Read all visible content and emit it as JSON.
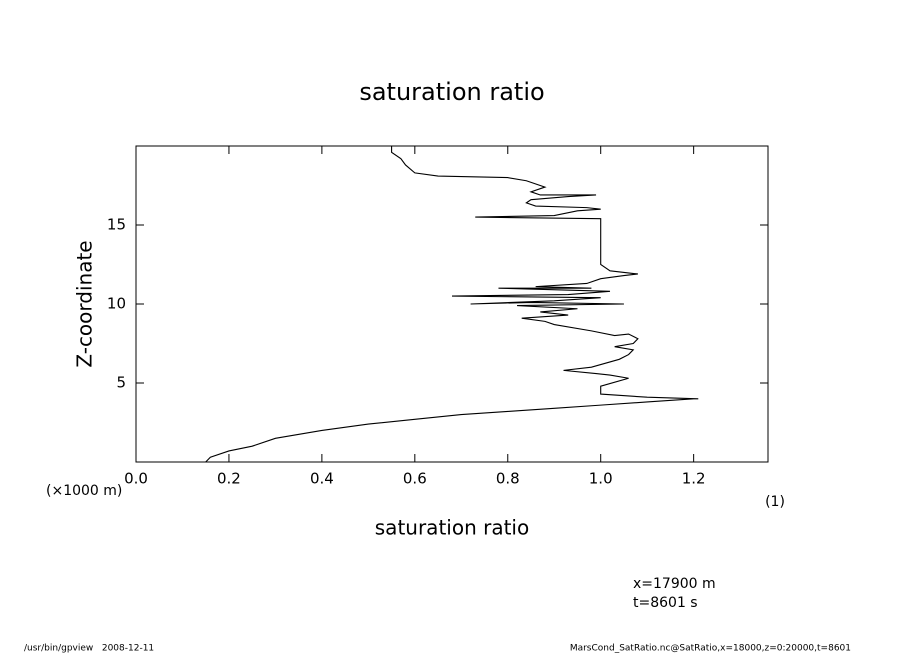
{
  "chart_data": {
    "type": "line",
    "title": "saturation ratio",
    "x_label": "saturation ratio",
    "y_label": "Z-coordinate",
    "y_unit": "(×1000 m)",
    "x_unit": "(1)",
    "annotations": [
      "x=17900 m",
      "t=8601 s"
    ],
    "footer_left": "/usr/bin/gpview   2008-12-11",
    "footer_right": "MarsCond_SatRatio.nc@SatRatio,x=18000,z=0:20000,t=8601",
    "xlim": [
      0,
      1.36
    ],
    "ylim": [
      0,
      20
    ],
    "xticks": [
      {
        "value": 0,
        "label": "0.0"
      },
      0.2,
      0.4,
      0.6,
      0.8,
      {
        "value": 1,
        "label": "1.0"
      },
      1.2
    ],
    "yticks": [
      5,
      10,
      15
    ],
    "series": [
      {
        "color": "#000000",
        "x": [
          0.15,
          0.16,
          0.2,
          0.25,
          0.3,
          0.4,
          0.5,
          0.6,
          0.7,
          0.8,
          0.9,
          1.0,
          1.1,
          1.2,
          1.21,
          1.1,
          1.0,
          1.0,
          1.06,
          1.02,
          0.99,
          0.92,
          0.98,
          1.04,
          1.06,
          1.07,
          1.03,
          1.07,
          1.08,
          1.06,
          1.03,
          0.98,
          0.9,
          0.88,
          0.83,
          0.93,
          0.87,
          0.95,
          0.82,
          1.05,
          0.85,
          0.72,
          0.9,
          1.0,
          0.68,
          0.93,
          1.02,
          0.78,
          0.98,
          0.86,
          0.97,
          1.0,
          1.05,
          1.08,
          1.02,
          1.0,
          1.0,
          0.73,
          0.9,
          0.95,
          1.0,
          0.97,
          0.86,
          0.84,
          0.85,
          0.93,
          0.99,
          0.87,
          0.85,
          0.88,
          0.84,
          0.8,
          0.65,
          0.6,
          0.58,
          0.57,
          0.55,
          0.55
        ],
        "values": [
          0,
          0.3,
          0.7,
          1.0,
          1.5,
          2.0,
          2.4,
          2.7,
          3.0,
          3.2,
          3.4,
          3.6,
          3.8,
          4.0,
          4.0,
          4.1,
          4.3,
          4.8,
          5.3,
          5.5,
          5.6,
          5.8,
          6.0,
          6.5,
          6.8,
          7.1,
          7.3,
          7.5,
          7.8,
          8.1,
          8.0,
          8.3,
          8.7,
          8.9,
          9.1,
          9.3,
          9.5,
          9.7,
          9.9,
          10.0,
          10.1,
          10.0,
          10.2,
          10.4,
          10.5,
          10.6,
          10.8,
          11.0,
          11.0,
          11.1,
          11.3,
          11.6,
          11.8,
          11.9,
          12.1,
          12.5,
          15.4,
          15.5,
          15.6,
          15.9,
          16.0,
          16.1,
          16.2,
          16.4,
          16.6,
          16.8,
          16.9,
          16.9,
          17.1,
          17.4,
          17.8,
          18.0,
          18.1,
          18.3,
          18.8,
          19.2,
          19.6,
          20.0
        ]
      }
    ]
  }
}
